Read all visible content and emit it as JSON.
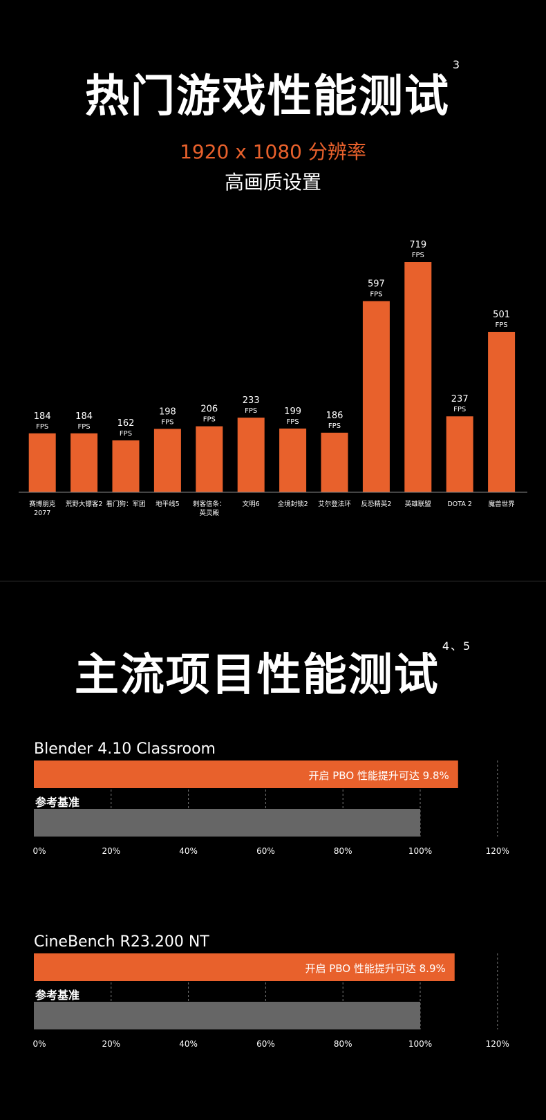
{
  "header": {
    "title": "热门游戏性能测试",
    "title_sup": "3",
    "resolution": "1920 x 1080 分辨率",
    "quality": "高画质设置"
  },
  "section2": {
    "title": "主流项目性能测试",
    "title_sup": "4、5"
  },
  "colors": {
    "accent": "#e8612c",
    "baseline_bar": "#666666",
    "background": "#000000"
  },
  "chart_data": [
    {
      "type": "bar",
      "unit": "FPS",
      "categories": [
        [
          "赛博朋克",
          "2077"
        ],
        [
          "荒野大镖客2"
        ],
        [
          "看门狗：军团"
        ],
        [
          "地平线5"
        ],
        [
          "刺客信条：",
          "英灵殿"
        ],
        [
          "文明6"
        ],
        [
          "全境封锁2"
        ],
        [
          "艾尔登法环"
        ],
        [
          "反恐精英2"
        ],
        [
          "英雄联盟"
        ],
        [
          "DOTA 2"
        ],
        [
          "魔兽世界"
        ]
      ],
      "values": [
        184,
        184,
        162,
        198,
        206,
        233,
        199,
        186,
        597,
        719,
        237,
        501
      ],
      "ylim": [
        0,
        719
      ]
    },
    {
      "type": "bar",
      "orientation": "horizontal",
      "title": "Blender 4.10  Classroom",
      "xlim": [
        0,
        120
      ],
      "ticks": [
        "0%",
        "20%",
        "40%",
        "60%",
        "80%",
        "100%",
        "120%"
      ],
      "series": [
        {
          "label": "开启 PBO 性能提升可达 9.8%",
          "value": 109.8
        },
        {
          "label": "参考基准",
          "value": 100
        }
      ]
    },
    {
      "type": "bar",
      "orientation": "horizontal",
      "title": "CineBench R23.200  NT",
      "xlim": [
        0,
        120
      ],
      "ticks": [
        "0%",
        "20%",
        "40%",
        "60%",
        "80%",
        "100%",
        "120%"
      ],
      "series": [
        {
          "label": "开启 PBO 性能提升可达 8.9%",
          "value": 108.9
        },
        {
          "label": "参考基准",
          "value": 100
        }
      ]
    }
  ]
}
